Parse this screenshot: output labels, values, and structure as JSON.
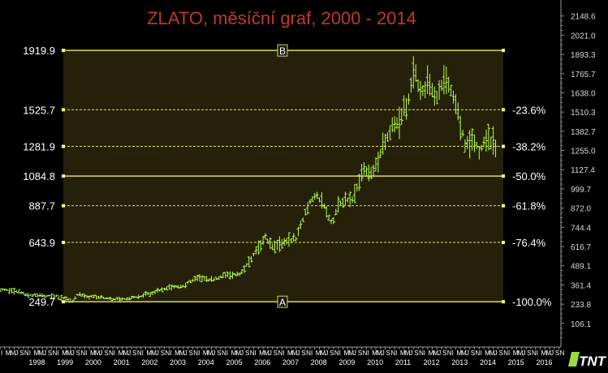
{
  "chart_data": {
    "type": "ohlc",
    "title": "ZLATO, měsíční graf, 2000 - 2014",
    "watermark": "TNT",
    "colors": {
      "background": "#000000",
      "title": "#c0392b",
      "bars": "#b8ff4d",
      "plot_fill": "#24200a",
      "fib_line": "#ffff66",
      "axis_text": "#ffffff",
      "right_axis_text": "#d8d8d8",
      "axis_line": "#9a9a9a"
    },
    "ylim": [
      0,
      2200
    ],
    "right_axis_ticks": [
      "2148.6",
      "2021.0",
      "1893.3",
      "1765.7",
      "1638.0",
      "1510.3",
      "1382.7",
      "1255.0",
      "1127.4",
      "999.7",
      "872.0",
      "744.4",
      "616.7",
      "489.1",
      "361.4",
      "233.8",
      "106.1"
    ],
    "left_axis_labels": [
      "1919.9",
      "1525.7",
      "1281.9",
      "1084.8",
      "887.7",
      "643.9",
      "249.7"
    ],
    "fib_levels": [
      {
        "label": "",
        "value": 1919.9,
        "point": "B",
        "solid": true
      },
      {
        "label": "-23.6%",
        "value": 1525.7,
        "solid": false
      },
      {
        "label": "-38.2%",
        "value": 1281.9,
        "solid": false
      },
      {
        "label": "-50.0%",
        "value": 1084.8,
        "solid": true
      },
      {
        "label": "-61.8%",
        "value": 887.7,
        "solid": false
      },
      {
        "label": "-76.4%",
        "value": 643.9,
        "solid": false
      },
      {
        "label": "-100.0%",
        "value": 249.7,
        "point": "A",
        "solid": true
      }
    ],
    "x_years": [
      "1998",
      "1999",
      "2000",
      "2001",
      "2002",
      "2003",
      "2004",
      "2005",
      "2006",
      "2007",
      "2008",
      "2009",
      "2010",
      "2011",
      "2012",
      "2013",
      "2014",
      "2015",
      "2016"
    ],
    "x_quarter_ticks": "IMMJSN",
    "x_range": [
      1997.0,
      2016.9
    ],
    "retracement_range": [
      1999.9,
      2014.2
    ],
    "anchors": [
      [
        1997.0,
        330
      ],
      [
        1997.5,
        325
      ],
      [
        1998.0,
        295
      ],
      [
        1998.5,
        290
      ],
      [
        1999.0,
        285
      ],
      [
        1999.6,
        255
      ],
      [
        1999.8,
        310
      ],
      [
        2000.0,
        285
      ],
      [
        2000.5,
        280
      ],
      [
        2001.0,
        265
      ],
      [
        2001.5,
        270
      ],
      [
        2002.0,
        285
      ],
      [
        2002.5,
        315
      ],
      [
        2003.0,
        345
      ],
      [
        2003.5,
        355
      ],
      [
        2004.0,
        410
      ],
      [
        2004.5,
        395
      ],
      [
        2005.0,
        425
      ],
      [
        2005.5,
        430
      ],
      [
        2006.0,
        560
      ],
      [
        2006.4,
        680
      ],
      [
        2006.7,
        610
      ],
      [
        2007.0,
        640
      ],
      [
        2007.5,
        670
      ],
      [
        2008.0,
        920
      ],
      [
        2008.2,
        960
      ],
      [
        2008.5,
        880
      ],
      [
        2008.8,
        760
      ],
      [
        2009.0,
        900
      ],
      [
        2009.5,
        930
      ],
      [
        2009.9,
        1140
      ],
      [
        2010.2,
        1110
      ],
      [
        2010.5,
        1230
      ],
      [
        2010.9,
        1400
      ],
      [
        2011.2,
        1450
      ],
      [
        2011.5,
        1600
      ],
      [
        2011.7,
        1820
      ],
      [
        2011.9,
        1640
      ],
      [
        2012.2,
        1710
      ],
      [
        2012.5,
        1600
      ],
      [
        2012.8,
        1740
      ],
      [
        2013.0,
        1660
      ],
      [
        2013.2,
        1560
      ],
      [
        2013.5,
        1300
      ],
      [
        2013.8,
        1320
      ],
      [
        2014.0,
        1250
      ],
      [
        2014.3,
        1340
      ],
      [
        2014.6,
        1290
      ]
    ]
  }
}
